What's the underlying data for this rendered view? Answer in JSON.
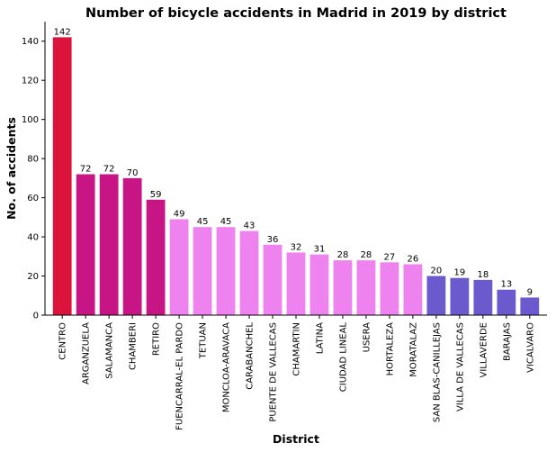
{
  "chart_data": {
    "type": "bar",
    "title": "Number of bicycle accidents in Madrid in 2019 by district",
    "xlabel": "District",
    "ylabel": "No. of accidents",
    "ylim": [
      0,
      150
    ],
    "yticks": [
      0,
      20,
      40,
      60,
      80,
      100,
      120,
      140
    ],
    "grid": false,
    "legend": "none",
    "categories": [
      "CENTRO",
      "ARGANZUELA",
      "SALAMANCA",
      "CHAMBERI",
      "RETIRO",
      "FUENCARRAL-EL PARDO",
      "TETUAN",
      "MONCLOA-ARAVACA",
      "CARABANCHEL",
      "PUENTE DE VALLECAS",
      "CHAMARTIN",
      "LATINA",
      "CIUDAD LINEAL",
      "USERA",
      "HORTALEZA",
      "MORATALAZ",
      "SAN BLAS-CANILLEJAS",
      "VILLA DE VALLECAS",
      "VILLAVERDE",
      "BARAJAS",
      "VICALVARO"
    ],
    "values": [
      142,
      72,
      72,
      70,
      59,
      49,
      45,
      45,
      43,
      36,
      32,
      31,
      28,
      28,
      27,
      26,
      20,
      19,
      18,
      13,
      9
    ],
    "colors": [
      "#dc143c",
      "#c71585",
      "#c71585",
      "#c71585",
      "#c71585",
      "#ee82ee",
      "#ee82ee",
      "#ee82ee",
      "#ee82ee",
      "#ee82ee",
      "#ee82ee",
      "#ee82ee",
      "#ee82ee",
      "#ee82ee",
      "#ee82ee",
      "#ee82ee",
      "#6a5acd",
      "#6a5acd",
      "#6a5acd",
      "#6a5acd",
      "#6a5acd"
    ]
  }
}
